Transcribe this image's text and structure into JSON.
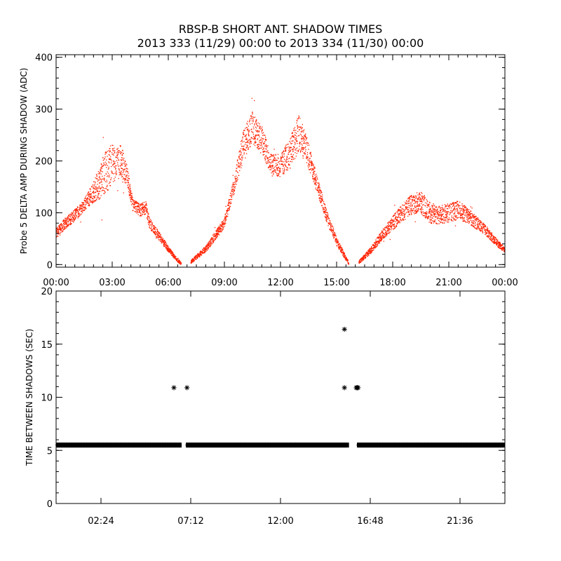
{
  "title_line1": "RBSP-B SHORT ANT. SHADOW TIMES",
  "title_line2": "2013 333 (11/29) 00:00 to 2013 334 (11/30) 00:00",
  "chart_data": [
    {
      "type": "scatter",
      "ylabel": "Probe 5 DELTA AMP DURING SHADOW (ADC)",
      "xlim": [
        0,
        24
      ],
      "ylim": [
        -5,
        405
      ],
      "x_ticks": [
        0,
        3,
        6,
        9,
        12,
        15,
        18,
        21,
        24
      ],
      "x_tick_labels": [
        "00:00",
        "03:00",
        "06:00",
        "09:00",
        "12:00",
        "15:00",
        "18:00",
        "21:00",
        "00:00"
      ],
      "y_ticks": [
        0,
        100,
        200,
        300,
        400
      ],
      "y_tick_labels": [
        "0",
        "100",
        "200",
        "300",
        "400"
      ],
      "marker_color": "#ff2000",
      "envelope_center": {
        "x": [
          0.0,
          0.5,
          1.0,
          1.5,
          2.0,
          2.5,
          3.0,
          3.5,
          3.8,
          4.1,
          4.5,
          4.8,
          5.0,
          5.5,
          6.0,
          6.5,
          6.7,
          7.2,
          8.0,
          9.0,
          9.5,
          10.0,
          10.5,
          11.0,
          11.5,
          12.0,
          12.5,
          13.0,
          13.5,
          14.0,
          14.5,
          15.0,
          15.5,
          15.65,
          16.2,
          16.5,
          17.0,
          17.5,
          18.0,
          18.5,
          19.0,
          19.5,
          20.0,
          20.5,
          21.0,
          21.5,
          22.0,
          22.5,
          23.0,
          23.5,
          24.0
        ],
        "y": [
          60,
          80,
          95,
          115,
          140,
          170,
          195,
          200,
          170,
          115,
          105,
          110,
          80,
          55,
          30,
          8,
          2,
          5,
          30,
          80,
          150,
          230,
          265,
          240,
          195,
          190,
          215,
          255,
          210,
          150,
          90,
          45,
          12,
          3,
          5,
          15,
          35,
          60,
          80,
          100,
          115,
          120,
          100,
          95,
          100,
          105,
          95,
          80,
          65,
          45,
          28
        ]
      },
      "envelope_halfwidth": {
        "x": [
          0.0,
          1.5,
          2.0,
          2.5,
          3.0,
          3.5,
          3.8,
          4.1,
          4.8,
          5.5,
          6.5,
          7.2,
          9.0,
          9.5,
          10.0,
          10.5,
          11.0,
          11.5,
          12.0,
          12.5,
          13.0,
          13.5,
          14.0,
          15.0,
          15.65,
          16.2,
          17.5,
          19.0,
          19.5,
          20.5,
          21.5,
          22.5,
          24.0
        ],
        "y": [
          10,
          12,
          20,
          40,
          40,
          30,
          20,
          12,
          12,
          8,
          3,
          3,
          10,
          15,
          30,
          30,
          28,
          20,
          22,
          30,
          35,
          25,
          15,
          8,
          3,
          3,
          10,
          20,
          22,
          18,
          18,
          12,
          5
        ]
      },
      "gaps": [
        [
          6.7,
          7.2
        ],
        [
          15.65,
          16.2
        ]
      ]
    },
    {
      "type": "scatter",
      "ylabel": "TIME BETWEEN SHADOWS (SEC)",
      "xlim": [
        0,
        24
      ],
      "ylim": [
        0,
        20
      ],
      "x_ticks": [
        2.4,
        7.2,
        12.0,
        16.8,
        21.6
      ],
      "x_tick_labels": [
        "02:24",
        "07:12",
        "12:00",
        "16:48",
        "21:36"
      ],
      "y_ticks": [
        0,
        5,
        10,
        15,
        20
      ],
      "y_tick_labels": [
        "0",
        "5",
        "10",
        "15",
        "20"
      ],
      "marker_color": "#000000",
      "baseline_value": 5.5,
      "baseline_segments": [
        [
          0.1,
          6.6
        ],
        [
          7.05,
          15.55
        ],
        [
          16.2,
          23.9
        ]
      ],
      "outliers": {
        "x": [
          6.3,
          7.0,
          15.42,
          15.42,
          16.05,
          16.1,
          16.15
        ],
        "y": [
          10.9,
          10.9,
          16.4,
          10.9,
          10.9,
          10.9,
          10.9
        ]
      }
    }
  ]
}
